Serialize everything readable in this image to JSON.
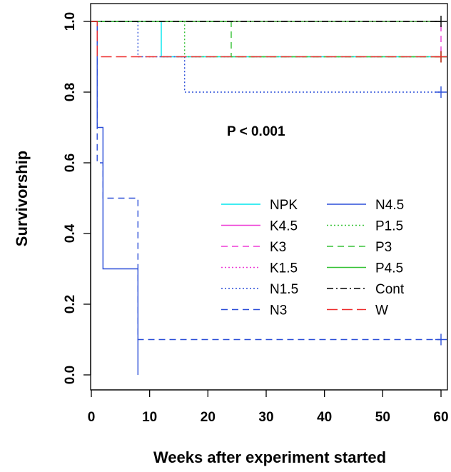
{
  "chart_data": {
    "type": "line",
    "subtype": "kaplan-meier step plot",
    "xlabel": "Weeks after experiment started",
    "ylabel": "Survivorship",
    "xlim": [
      0,
      60
    ],
    "ylim": [
      0,
      1
    ],
    "xticks": [
      "0",
      "10",
      "20",
      "30",
      "40",
      "50",
      "60"
    ],
    "yticks": [
      "0.0",
      "0.2",
      "0.4",
      "0.6",
      "0.8",
      "1.0"
    ],
    "xtick_values": [
      0,
      10,
      20,
      30,
      40,
      50,
      60
    ],
    "ytick_values": [
      0,
      0.2,
      0.4,
      0.6,
      0.8,
      1.0
    ],
    "grid": false,
    "legend_position": "center-right",
    "annotation": "P < 0.001",
    "series": [
      {
        "name": "NPK",
        "color": "#00e5ee",
        "dash": "solid",
        "points": [
          [
            0,
            1.0
          ],
          [
            12,
            1.0
          ],
          [
            12,
            0.9
          ],
          [
            60,
            0.9
          ]
        ],
        "censor": [
          [
            60,
            0.9
          ]
        ]
      },
      {
        "name": "K4.5",
        "color": "#ee3bd6",
        "dash": "solid",
        "points": [
          [
            0,
            1.0
          ],
          [
            60,
            1.0
          ]
        ],
        "censor": []
      },
      {
        "name": "K3",
        "color": "#ee3bd6",
        "dash": "dashed",
        "points": [
          [
            0,
            1.0
          ],
          [
            60,
            1.0
          ],
          [
            60,
            0.9
          ]
        ],
        "censor": [
          [
            60,
            0.9
          ]
        ]
      },
      {
        "name": "K1.5",
        "color": "#ee3bd6",
        "dash": "dotted",
        "points": [
          [
            0,
            1.0
          ],
          [
            60,
            1.0
          ]
        ],
        "censor": []
      },
      {
        "name": "N1.5",
        "color": "#2c4fd8",
        "dash": "dotted",
        "points": [
          [
            0,
            1.0
          ],
          [
            8,
            1.0
          ],
          [
            8,
            0.9
          ],
          [
            16,
            0.9
          ],
          [
            16,
            0.8
          ],
          [
            60,
            0.8
          ]
        ],
        "censor": [
          [
            60,
            0.8
          ]
        ]
      },
      {
        "name": "N3",
        "color": "#2c4fd8",
        "dash": "dashed",
        "points": [
          [
            0,
            1.0
          ],
          [
            1,
            1.0
          ],
          [
            1,
            0.6
          ],
          [
            2,
            0.6
          ],
          [
            2,
            0.5
          ],
          [
            8,
            0.5
          ],
          [
            8,
            0.1
          ],
          [
            60,
            0.1
          ]
        ],
        "censor": [
          [
            60,
            0.1
          ]
        ]
      },
      {
        "name": "N4.5",
        "color": "#2c4fd8",
        "dash": "solid",
        "points": [
          [
            0,
            1.0
          ],
          [
            1,
            1.0
          ],
          [
            1,
            0.7
          ],
          [
            2,
            0.7
          ],
          [
            2,
            0.3
          ],
          [
            8,
            0.3
          ],
          [
            8,
            0.0
          ]
        ],
        "censor": []
      },
      {
        "name": "P1.5",
        "color": "#36c236",
        "dash": "dotted",
        "points": [
          [
            0,
            1.0
          ],
          [
            16,
            1.0
          ],
          [
            16,
            0.9
          ],
          [
            60,
            0.9
          ]
        ],
        "censor": [
          [
            60,
            0.9
          ]
        ]
      },
      {
        "name": "P3",
        "color": "#36c236",
        "dash": "dashed",
        "points": [
          [
            0,
            1.0
          ],
          [
            24,
            1.0
          ],
          [
            24,
            0.9
          ],
          [
            60,
            0.9
          ]
        ],
        "censor": [
          [
            60,
            0.9
          ]
        ]
      },
      {
        "name": "P4.5",
        "color": "#36c236",
        "dash": "solid",
        "points": [
          [
            0,
            1.0
          ],
          [
            60,
            1.0
          ]
        ],
        "censor": []
      },
      {
        "name": "Cont",
        "color": "#000000",
        "dash": "dashdot",
        "points": [
          [
            0,
            1.0
          ],
          [
            60,
            1.0
          ]
        ],
        "censor": [
          [
            60,
            1.0
          ]
        ]
      },
      {
        "name": "W",
        "color": "#ee2c2c",
        "dash": "longdash",
        "points": [
          [
            0,
            1.0
          ],
          [
            1,
            1.0
          ],
          [
            1,
            0.9
          ],
          [
            60,
            0.9
          ]
        ],
        "censor": [
          [
            60,
            0.9
          ]
        ]
      }
    ],
    "legend_columns": [
      [
        "NPK",
        "K4.5",
        "K3",
        "K1.5",
        "N1.5",
        "N3"
      ],
      [
        "N4.5",
        "P1.5",
        "P3",
        "P4.5",
        "Cont",
        "W"
      ]
    ]
  }
}
